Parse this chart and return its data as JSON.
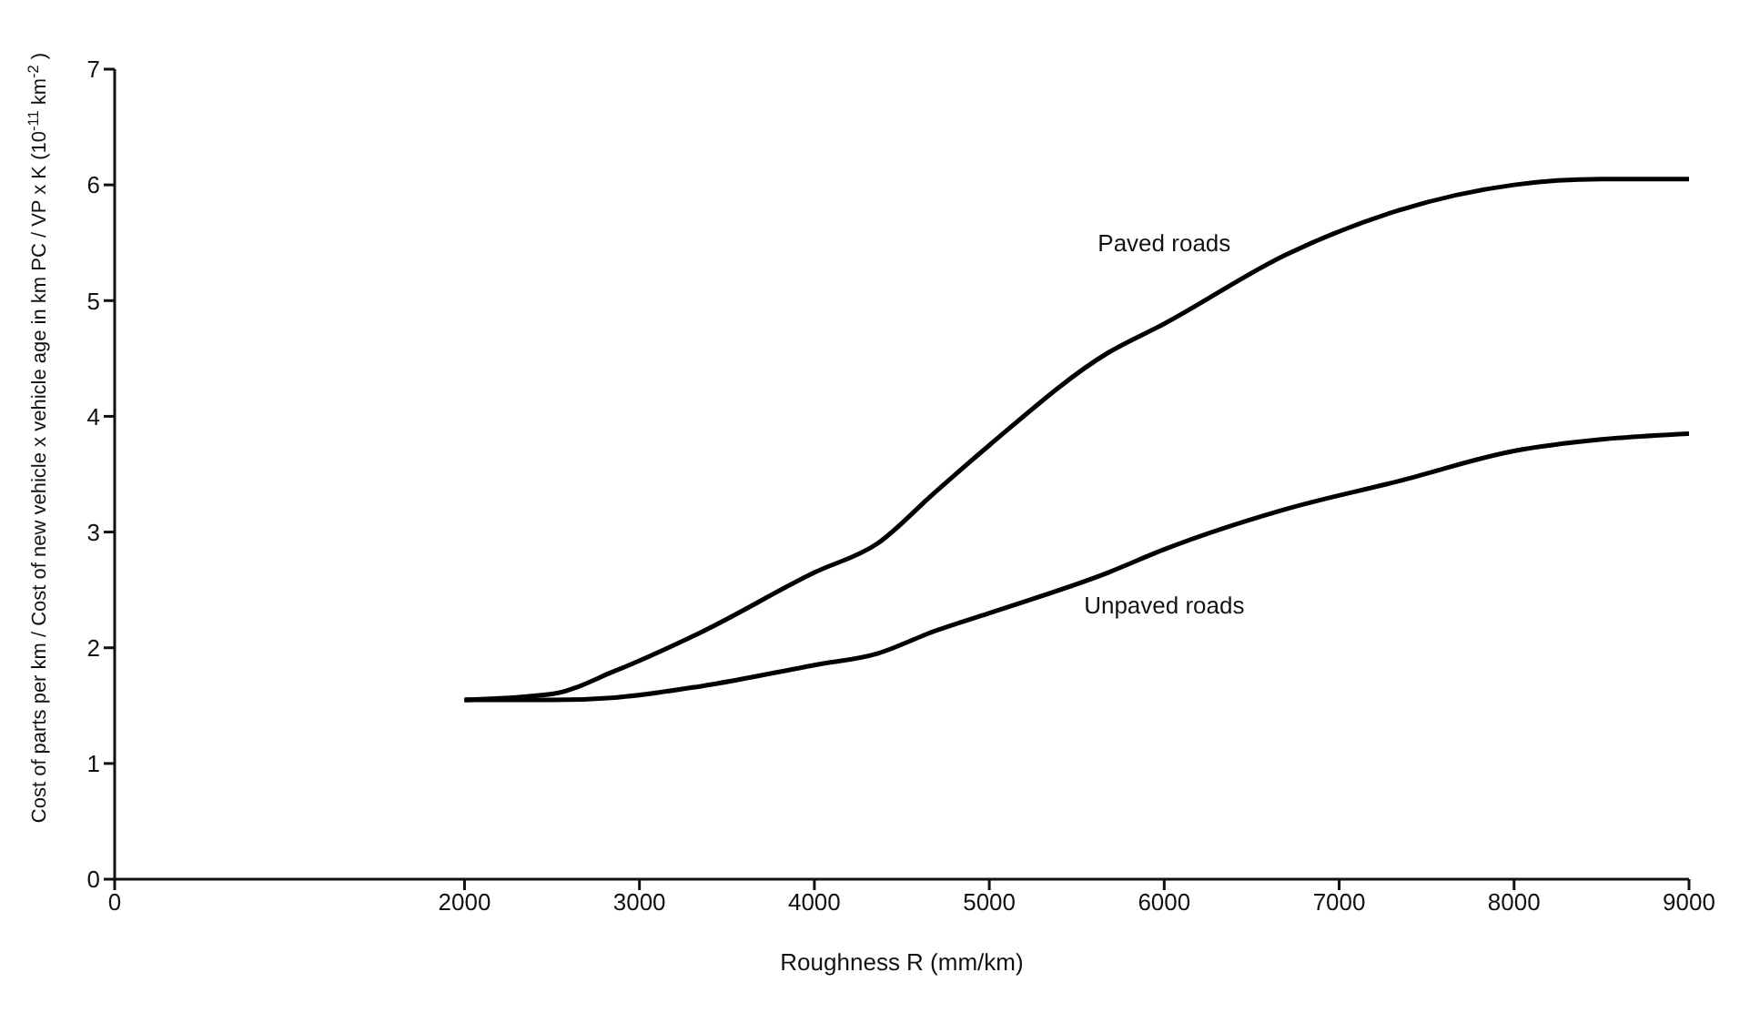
{
  "chart_data": {
    "type": "line",
    "xlabel": "Roughness R (mm/km)",
    "ylabel": "Cost of parts per km / Cost of new vehicle x vehicle age in km   PC / VP x K   (10$^{-11}$km$^{-2}$)",
    "xlim": [
      0,
      9000
    ],
    "xticks": [
      0,
      2000,
      3000,
      4000,
      5000,
      6000,
      7000,
      8000,
      9000
    ],
    "ylim": [
      0,
      7
    ],
    "yticks": [
      0,
      1,
      2,
      3,
      4,
      5,
      6,
      7
    ],
    "grid": false,
    "legend": false,
    "marker": "none",
    "line_style": "solid",
    "series": [
      {
        "name": "Paved roads",
        "color": "#000000",
        "x": [
          2000,
          2500,
          2860,
          3360,
          4000,
          4360,
          4680,
          5000,
          5680,
          6000,
          6700,
          7340,
          8000,
          8500,
          9000
        ],
        "values": [
          1.55,
          1.6,
          1.8,
          2.14,
          2.65,
          2.9,
          3.33,
          3.75,
          4.55,
          4.8,
          5.4,
          5.78,
          6.0,
          6.05,
          6.05
        ]
      },
      {
        "name": "Unpaved roads",
        "color": "#000000",
        "x": [
          2000,
          2500,
          2860,
          3360,
          4000,
          4360,
          4680,
          5000,
          5680,
          6000,
          6700,
          7340,
          8000,
          8500,
          9000
        ],
        "values": [
          1.55,
          1.55,
          1.57,
          1.67,
          1.85,
          1.95,
          2.14,
          2.3,
          2.65,
          2.85,
          3.2,
          3.44,
          3.7,
          3.8,
          3.85
        ]
      }
    ]
  }
}
